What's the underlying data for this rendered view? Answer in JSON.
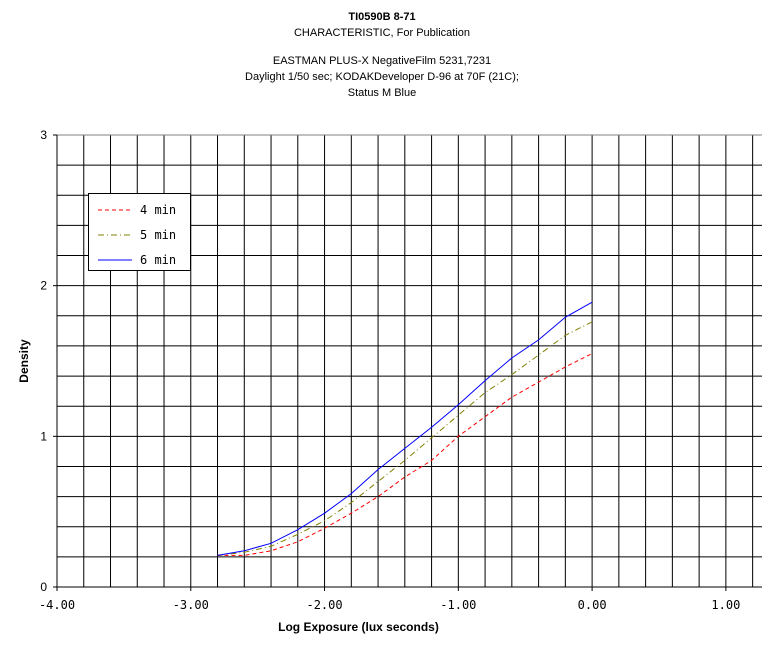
{
  "chart_data": {
    "type": "line",
    "title": "TI0590B 8-71",
    "subtitle_lines": [
      "CHARACTERISTIC, For Publication",
      "",
      "EASTMAN PLUS-X NegativeFilm 5231,7231",
      "Daylight 1/50 sec; KODAKDeveloper D-96 at 70F (21C);",
      "Status M Blue"
    ],
    "xlabel": "Log Exposure (lux seconds)",
    "ylabel": "Density",
    "xlim": [
      -4.0,
      1.27
    ],
    "ylim": [
      0,
      3
    ],
    "x_ticks": [
      -4,
      -3,
      -2,
      -1,
      0,
      1
    ],
    "x_tick_labels": [
      "-4.00",
      "-3.00",
      "-2.00",
      "-1.00",
      "0.00",
      "1.00"
    ],
    "y_ticks": [
      0,
      1,
      2,
      3
    ],
    "y_tick_labels": [
      "0",
      "1",
      "2",
      "3"
    ],
    "grid": true,
    "grid_step_x": 0.2,
    "grid_step_y": 0.2,
    "legend_placement": "top-left",
    "x": [
      -2.8,
      -2.6,
      -2.4,
      -2.2,
      -2.0,
      -1.8,
      -1.6,
      -1.4,
      -1.2,
      -1.0,
      -0.8,
      -0.6,
      -0.4,
      -0.2,
      0.0
    ],
    "series": [
      {
        "name": "4 min",
        "color": "#ff0000",
        "style": "dashed",
        "values": [
          0.21,
          0.21,
          0.24,
          0.3,
          0.39,
          0.49,
          0.6,
          0.73,
          0.84,
          1.0,
          1.13,
          1.26,
          1.36,
          1.46,
          1.55
        ]
      },
      {
        "name": "5 min",
        "color": "#808000",
        "style": "dash-dot",
        "values": [
          0.21,
          0.23,
          0.27,
          0.35,
          0.44,
          0.56,
          0.7,
          0.84,
          0.99,
          1.14,
          1.29,
          1.41,
          1.54,
          1.67,
          1.76
        ]
      },
      {
        "name": "6 min",
        "color": "#0000ff",
        "style": "solid",
        "values": [
          0.21,
          0.24,
          0.29,
          0.38,
          0.49,
          0.62,
          0.78,
          0.92,
          1.06,
          1.21,
          1.37,
          1.52,
          1.64,
          1.79,
          1.89
        ]
      }
    ]
  }
}
